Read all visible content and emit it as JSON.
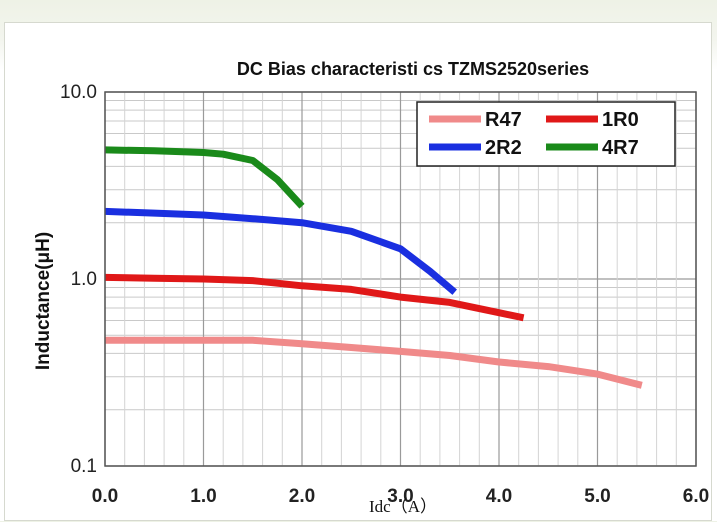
{
  "chart_data": {
    "type": "line",
    "title": "DC Bias characteristi cs  TZMS2520series",
    "xlabel": "Idc（A）",
    "ylabel": "Inductance(μH)",
    "xlim": [
      0,
      6
    ],
    "ylim": [
      0.1,
      10
    ],
    "yscale": "log",
    "grid": true,
    "legend_position": "top-right",
    "x_ticks": [
      "0.0",
      "1.0",
      "2.0",
      "3.0",
      "4.0",
      "5.0",
      "6.0"
    ],
    "y_ticks": [
      "0.1",
      "1.0",
      "10.0"
    ],
    "series": [
      {
        "name": "R47",
        "color": "#f08a8a",
        "x": [
          0,
          0.5,
          1.0,
          1.5,
          2.0,
          2.5,
          3.0,
          3.5,
          4.0,
          4.5,
          5.0,
          5.45
        ],
        "y": [
          0.47,
          0.47,
          0.47,
          0.47,
          0.45,
          0.43,
          0.41,
          0.39,
          0.36,
          0.34,
          0.31,
          0.27
        ]
      },
      {
        "name": "1R0",
        "color": "#e01818",
        "x": [
          0,
          0.5,
          1.0,
          1.5,
          2.0,
          2.5,
          3.0,
          3.5,
          4.0,
          4.25
        ],
        "y": [
          1.02,
          1.01,
          1.0,
          0.98,
          0.92,
          0.88,
          0.8,
          0.75,
          0.66,
          0.62
        ]
      },
      {
        "name": "2R2",
        "color": "#1a2fe0",
        "x": [
          0,
          0.5,
          1.0,
          1.5,
          2.0,
          2.5,
          3.0,
          3.3,
          3.55
        ],
        "y": [
          2.3,
          2.25,
          2.2,
          2.1,
          2.0,
          1.8,
          1.45,
          1.1,
          0.85
        ]
      },
      {
        "name": "4R7",
        "color": "#1a8a1a",
        "x": [
          0,
          0.5,
          1.0,
          1.2,
          1.5,
          1.75,
          2.0
        ],
        "y": [
          4.9,
          4.85,
          4.75,
          4.65,
          4.3,
          3.4,
          2.45
        ]
      }
    ]
  }
}
